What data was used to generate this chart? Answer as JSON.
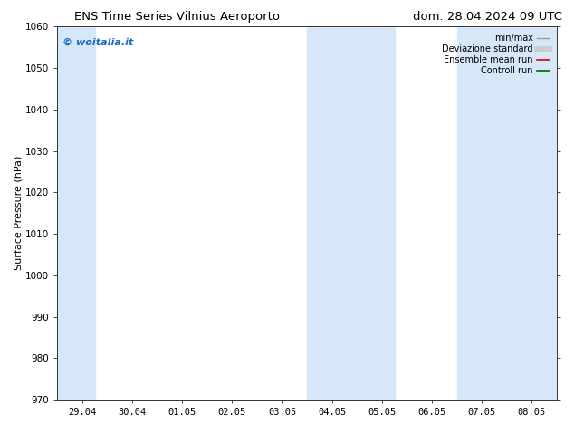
{
  "title_left": "ENS Time Series Vilnius Aeroporto",
  "title_right": "dom. 28.04.2024 09 UTC",
  "ylabel": "Surface Pressure (hPa)",
  "ylim": [
    970,
    1060
  ],
  "yticks": [
    970,
    980,
    990,
    1000,
    1010,
    1020,
    1030,
    1040,
    1050,
    1060
  ],
  "xtick_labels": [
    "29.04",
    "30.04",
    "01.05",
    "02.05",
    "03.05",
    "04.05",
    "05.05",
    "06.05",
    "07.05",
    "08.05"
  ],
  "xtick_positions": [
    0,
    1,
    2,
    3,
    4,
    5,
    6,
    7,
    8,
    9
  ],
  "xlim": [
    -0.5,
    9.5
  ],
  "shaded_bands": [
    {
      "x_start": -0.5,
      "x_end": 0.25,
      "color": "#d6e8f7"
    },
    {
      "x_start": 4.5,
      "x_end": 5.5,
      "color": "#d6e8f7"
    },
    {
      "x_start": 5.5,
      "x_end": 6.25,
      "color": "#d6e8f7"
    },
    {
      "x_start": 7.5,
      "x_end": 8.5,
      "color": "#d6e8f7"
    },
    {
      "x_start": 8.5,
      "x_end": 9.5,
      "color": "#d6e8f7"
    }
  ],
  "watermark_text": "© woitalia.it",
  "watermark_color": "#1a6abf",
  "legend_labels": [
    "min/max",
    "Deviazione standard",
    "Ensemble mean run",
    "Controll run"
  ],
  "legend_colors_line": [
    "#999999",
    "#cccccc",
    "#dd0000",
    "#006600"
  ],
  "background_color": "#ffffff",
  "title_fontsize": 9.5,
  "ylabel_fontsize": 8,
  "tick_fontsize": 7.5,
  "watermark_fontsize": 8,
  "legend_fontsize": 7
}
